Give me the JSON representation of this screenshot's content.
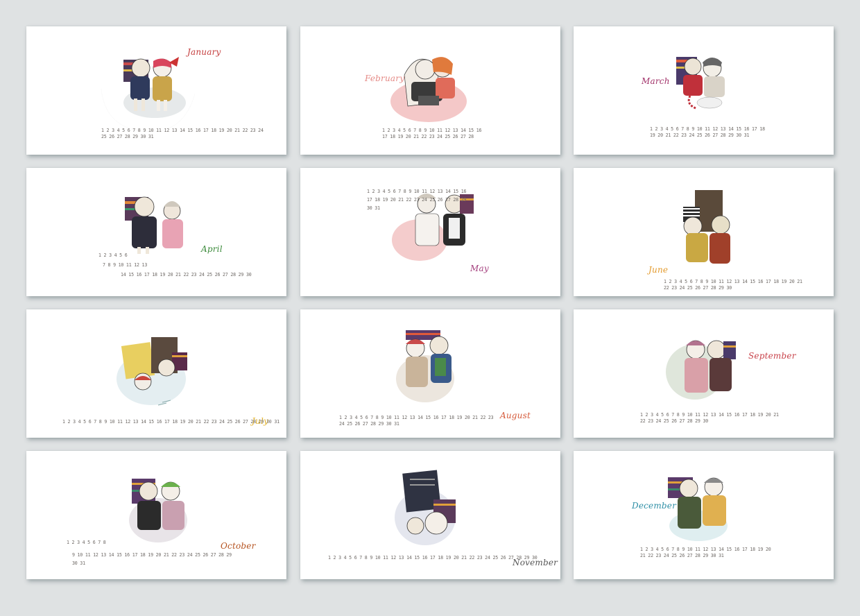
{
  "colors": {
    "background": "#dfe2e3",
    "card": "#ffffff",
    "day_text": "#6f6a66",
    "highlight_orange": "#d18a2c",
    "highlight_red": "#c0392b"
  },
  "months": [
    {
      "name": "January",
      "color": "#c43c3c",
      "days": "1 2 3 4 5 6 7 8 9 10 11 12 13 14 15 16 17 18 19 20 21 22 23 24 25 26 27 28 29 30 31"
    },
    {
      "name": "February",
      "color": "#e58a86",
      "days": "1 2 3 4 5 6 7 8 9 10 11 12 13 14 15 16 17 18 19 20 21 22 23 24 25 26 27 28"
    },
    {
      "name": "March",
      "color": "#a2336a",
      "days": "1 2 3 4 5 6 7 8 9 10 11 12 13 14 15 16 17 18 19 20 21 22 23 24 25 26 27 28 29 30 31"
    },
    {
      "name": "April",
      "color": "#3b8a3a",
      "days_line1": "1 2 3 4 5 6",
      "days_line2": "7 8 9 10 11 12 13",
      "days_line3": "14 15 16 17 18 19 20 21 22 23 24 25 26 27 28 29 30"
    },
    {
      "name": "May",
      "color": "#a4407e",
      "days": "1 2 3 4 5 6 7 8 9 10 11 12 13 14 15 16 17 18 19 20 21 22 23 24 25 26 27 28 29 30 31"
    },
    {
      "name": "June",
      "color": "#e39b2e",
      "days": "1 2 3 4 5 6 7 8 9 10 11 12 13 14 15 16 17 18 19 20 21 22 23 24 25 26 27 28 29 30"
    },
    {
      "name": "July",
      "color": "#e3b42e",
      "days": "1 2 3 4 5 6 7 8 9 10 11 12 13 14 15 16 17 18 19 20 21 22 23 24 25 26 27 28 29 30 31"
    },
    {
      "name": "August",
      "color": "#d55a3a",
      "days": "1 2 3 4 5 6 7 8 9 10 11 12 13 14 15 16 17 18 19 20 21 22 23 24 25 26 27 28 29 30 31"
    },
    {
      "name": "September",
      "color": "#c8424a",
      "days": "1 2 3 4 5 6 7 8 9 10 11 12 13 14 15 16 17 18 19 20 21 22 23 24 25 26 27 28 29 30"
    },
    {
      "name": "October",
      "color": "#b5521f",
      "days_line1": "1 2 3 4 5 6 7 8",
      "days_line2": "9 10 11 12 13 14 15 16 17 18 19 20 21 22 23 24 25 26 27 28 29 30 31"
    },
    {
      "name": "November",
      "color": "#555555",
      "days": "1 2 3 4 5 6 7 8 9 10 11 12 13 14 15 16 17 18 19 20 21 22 23 24 25 26 27 28 29 30"
    },
    {
      "name": "December",
      "color": "#2e8fa6",
      "days": "1 2 3 4 5 6 7 8 9 10 11 12 13 14 15 16 17 18 19 20 21 22 23 24 25 26 27 28 29 30 31"
    }
  ]
}
